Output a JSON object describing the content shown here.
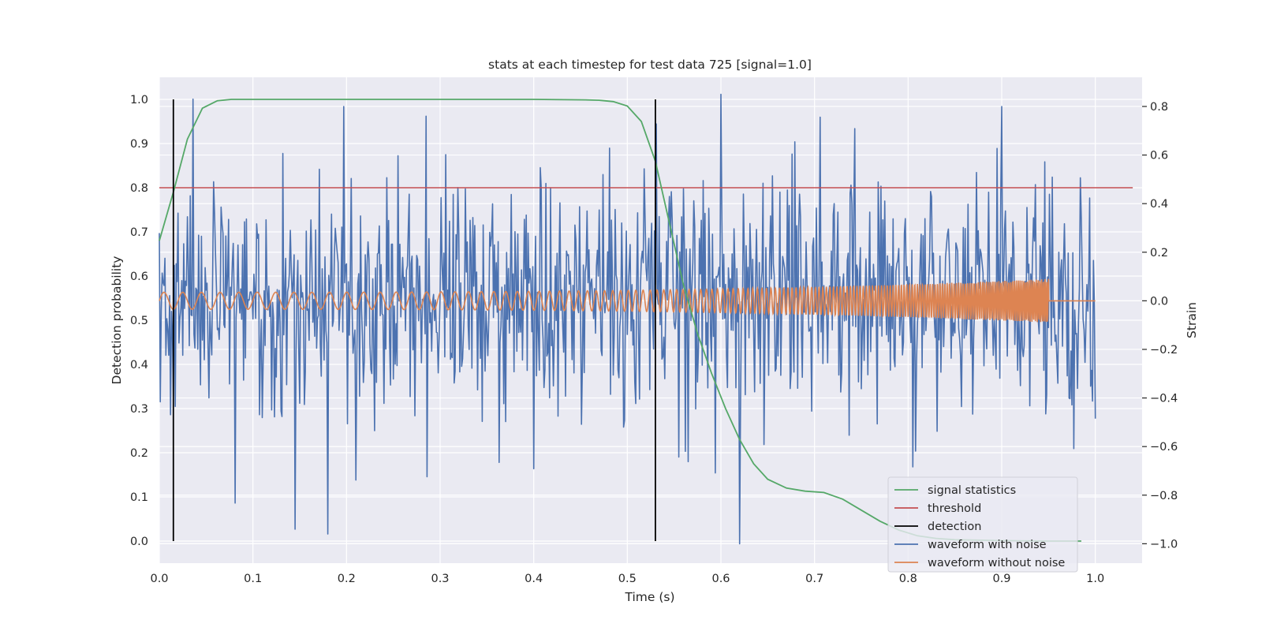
{
  "chart_data": {
    "type": "line",
    "title": "stats at each timestep for test data 725 [signal=1.0]",
    "xlabel": "Time (s)",
    "ylabel": "Detection probability",
    "y2label": "Strain",
    "xlim": [
      0.0,
      1.05
    ],
    "ylim": [
      -0.05,
      1.05
    ],
    "y2lim": [
      -1.08,
      0.92
    ],
    "xticks": [
      0.0,
      0.1,
      0.2,
      0.3,
      0.4,
      0.5,
      0.6,
      0.7,
      0.8,
      0.9,
      1.0
    ],
    "xtick_labels": [
      "0.0",
      "0.1",
      "0.2",
      "0.3",
      "0.4",
      "0.5",
      "0.6",
      "0.7",
      "0.8",
      "0.9",
      "1.0"
    ],
    "yticks": [
      0.0,
      0.1,
      0.2,
      0.3,
      0.4,
      0.5,
      0.6,
      0.7,
      0.8,
      0.9,
      1.0
    ],
    "ytick_labels": [
      "0.0",
      "0.1",
      "0.2",
      "0.3",
      "0.4",
      "0.5",
      "0.6",
      "0.7",
      "0.8",
      "0.9",
      "1.0"
    ],
    "y2ticks": [
      -1.0,
      -0.8,
      -0.6,
      -0.4,
      -0.2,
      0.0,
      0.2,
      0.4,
      0.6,
      0.8
    ],
    "y2tick_labels": [
      "−1.0",
      "−0.8",
      "−0.6",
      "−0.4",
      "−0.2",
      "0.0",
      "0.2",
      "0.4",
      "0.6",
      "0.8"
    ],
    "grid": true,
    "legend_position": "lower right",
    "colors": {
      "background": "#eaeaf2",
      "grid": "#ffffff",
      "signal_statistics": "#55a868",
      "threshold": "#c44e52",
      "detection": "#000000",
      "waveform_with_noise": "#4c72b0",
      "waveform_without_noise": "#dd8452"
    },
    "series": [
      {
        "name": "signal statistics",
        "axis": "left",
        "x": [
          0.0,
          0.015,
          0.03,
          0.046,
          0.062,
          0.077,
          0.093,
          0.2,
          0.3,
          0.4,
          0.455,
          0.47,
          0.485,
          0.5,
          0.515,
          0.53,
          0.545,
          0.56,
          0.575,
          0.59,
          0.605,
          0.62,
          0.635,
          0.65,
          0.67,
          0.69,
          0.71,
          0.73,
          0.75,
          0.77,
          0.79,
          0.81,
          0.83,
          0.85,
          0.9,
          0.95,
          0.985
        ],
        "y": [
          0.68,
          0.79,
          0.91,
          0.98,
          0.997,
          1.0,
          1.0,
          1.0,
          1.0,
          1.0,
          0.999,
          0.998,
          0.995,
          0.985,
          0.95,
          0.86,
          0.72,
          0.58,
          0.47,
          0.38,
          0.3,
          0.23,
          0.175,
          0.14,
          0.12,
          0.113,
          0.11,
          0.095,
          0.07,
          0.045,
          0.025,
          0.012,
          0.006,
          0.003,
          0.001,
          0.0,
          0.0
        ]
      },
      {
        "name": "threshold",
        "axis": "left",
        "x": [
          0.0,
          1.04
        ],
        "y": [
          0.8,
          0.8
        ]
      },
      {
        "name": "detection",
        "axis": "left",
        "x": [
          0.015,
          0.53
        ],
        "y": [
          0.0,
          1.0
        ]
      },
      {
        "name": "waveform with noise",
        "axis": "right",
        "x_range": [
          0.0,
          1.0
        ],
        "n_points": 1000,
        "approx_std": 0.25,
        "peaks": [
          {
            "x": 0.036,
            "y": 0.83
          },
          {
            "x": 0.6,
            "y": 0.85
          },
          {
            "x": 0.62,
            "y": -1.0
          },
          {
            "x": 0.145,
            "y": -0.94
          },
          {
            "x": 0.18,
            "y": -0.96
          },
          {
            "x": 0.197,
            "y": 0.8
          },
          {
            "x": 0.285,
            "y": 0.76
          },
          {
            "x": 0.9,
            "y": 0.8
          }
        ]
      },
      {
        "name": "waveform without noise",
        "axis": "right",
        "x_range": [
          0.0,
          1.0
        ],
        "amplitude_start": 0.035,
        "amplitude_end": 0.09,
        "frequency_start_hz": 50,
        "frequency_end_hz": 300,
        "merger_time": 0.95,
        "post_merger_value": 0.0
      }
    ]
  }
}
